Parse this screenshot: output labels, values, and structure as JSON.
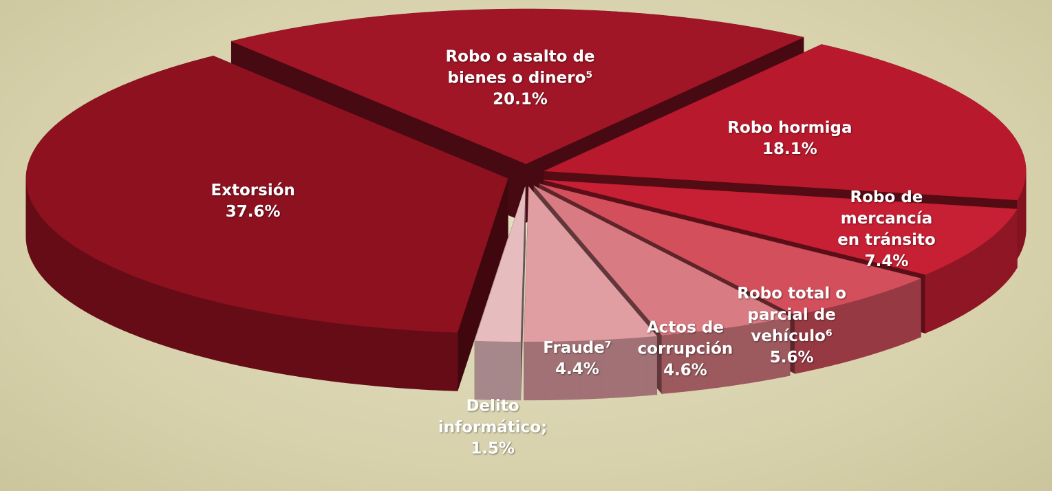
{
  "chart_data": {
    "type": "pie",
    "categories": [
      "Extorsión",
      "Robo o asalto de bienes o dinero⁵",
      "Robo hormiga",
      "Robo de mercancía en tránsito",
      "Robo total o parcial de vehículo⁶",
      "Actos de corrupción",
      "Fraude⁷",
      "Delito informático;"
    ],
    "values": [
      37.6,
      20.1,
      18.1,
      7.4,
      5.6,
      4.6,
      4.4,
      1.5
    ],
    "value_labels": [
      "37.6%",
      "20.1%",
      "18.1%",
      "7.4%",
      "5.6%",
      "4.6%",
      "4.4%",
      "1.5%"
    ],
    "colors": [
      "#8e1120",
      "#a11627",
      "#b8192d",
      "#c71f33",
      "#d24f5b",
      "#d97b82",
      "#e09da2",
      "#e6bcbf"
    ]
  }
}
